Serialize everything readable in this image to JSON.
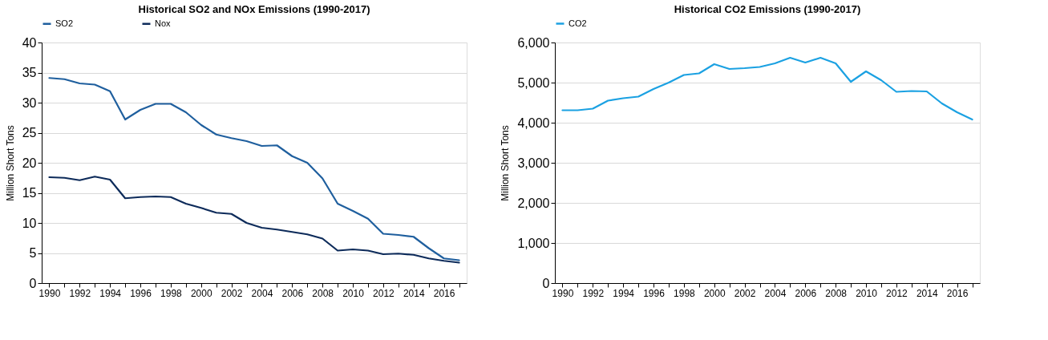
{
  "chart_data": [
    {
      "type": "line",
      "title": "Historical SO2 and NOx Emissions (1990-2017)",
      "ylabel": "Million Short Tons",
      "categories": [
        "1990",
        null,
        "1992",
        null,
        "1994",
        null,
        "1996",
        null,
        "1998",
        null,
        "2000",
        null,
        "2002",
        null,
        "2004",
        null,
        "2006",
        null,
        "2008",
        null,
        "2010",
        null,
        "2012",
        null,
        "2014",
        null,
        "2016",
        null
      ],
      "series": [
        {
          "name": "SO2",
          "color": "#1f5f9e",
          "values": [
            34.1,
            33.9,
            33.2,
            33.0,
            31.9,
            27.2,
            28.8,
            29.8,
            29.8,
            28.4,
            26.3,
            24.7,
            24.1,
            23.6,
            22.8,
            22.9,
            21.1,
            20.0,
            17.4,
            13.2,
            12.0,
            10.7,
            8.2,
            8.0,
            7.7,
            5.8,
            4.1,
            3.8
          ]
        },
        {
          "name": "Nox",
          "color": "#0d2b5a",
          "values": [
            17.6,
            17.5,
            17.1,
            17.7,
            17.2,
            14.1,
            14.3,
            14.4,
            14.3,
            13.2,
            12.5,
            11.7,
            11.5,
            10.0,
            9.2,
            8.9,
            8.5,
            8.1,
            7.4,
            5.4,
            5.6,
            5.4,
            4.8,
            4.9,
            4.7,
            4.1,
            3.7,
            3.4
          ]
        }
      ],
      "ylim": [
        0,
        40
      ],
      "yticks": [
        0,
        5,
        10,
        15,
        20,
        25,
        30,
        35,
        40
      ],
      "grid": "y",
      "legend": "top",
      "marker": "none",
      "line_style": "solid"
    },
    {
      "type": "line",
      "title": "Historical CO2 Emissions (1990-2017)",
      "ylabel": "Million Short Tons",
      "categories": [
        "1990",
        null,
        "1992",
        null,
        "1994",
        null,
        "1996",
        null,
        "1998",
        null,
        "2000",
        null,
        "2002",
        null,
        "2004",
        null,
        "2006",
        null,
        "2008",
        null,
        "2010",
        null,
        "2012",
        null,
        "2014",
        null,
        "2016",
        null
      ],
      "series": [
        {
          "name": "CO2",
          "color": "#1ba1e2",
          "values": [
            4310,
            4310,
            4350,
            4550,
            4610,
            4650,
            4840,
            5000,
            5190,
            5230,
            5460,
            5340,
            5360,
            5390,
            5480,
            5620,
            5500,
            5620,
            5480,
            5020,
            5280,
            5060,
            4770,
            4790,
            4780,
            4480,
            4260,
            4080
          ]
        }
      ],
      "ylim": [
        0,
        6000
      ],
      "yticks": [
        {
          "value": 0,
          "label": "0"
        },
        {
          "value": 1000,
          "label": "1,000"
        },
        {
          "value": 2000,
          "label": "2,000"
        },
        {
          "value": 3000,
          "label": "3,000"
        },
        {
          "value": 4000,
          "label": "4,000"
        },
        {
          "value": 5000,
          "label": "5,000"
        },
        {
          "value": 6000,
          "label": "6,000"
        }
      ],
      "grid": "y",
      "legend": "top",
      "marker": "none",
      "line_style": "solid"
    }
  ]
}
